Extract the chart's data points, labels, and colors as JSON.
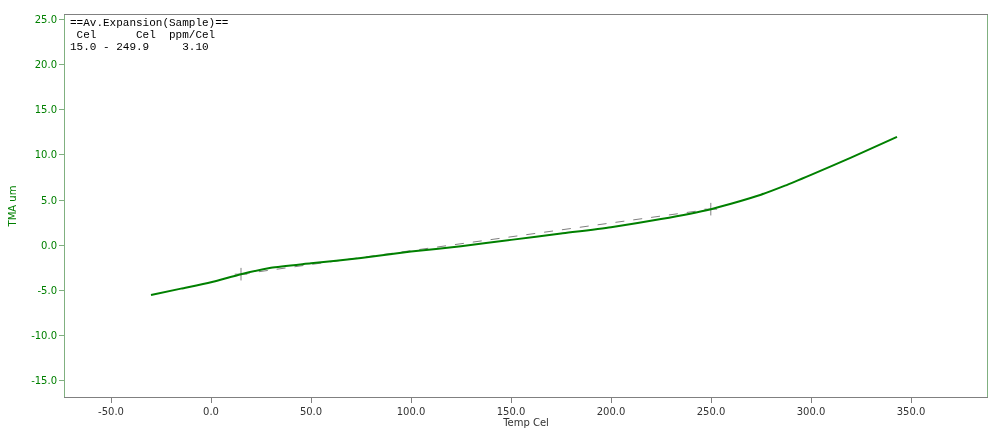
{
  "chart_data": {
    "type": "line",
    "xlabel": "Temp Cel",
    "ylabel": "TMA um",
    "xlim": [
      -73,
      388
    ],
    "ylim": [
      -16.8,
      25.5
    ],
    "xticks": [
      {
        "value": -50,
        "label": "-50.0"
      },
      {
        "value": 0,
        "label": "0.0"
      },
      {
        "value": 50,
        "label": "50.0"
      },
      {
        "value": 100,
        "label": "100.0"
      },
      {
        "value": 150,
        "label": "150.0"
      },
      {
        "value": 200,
        "label": "200.0"
      },
      {
        "value": 250,
        "label": "250.0"
      },
      {
        "value": 300,
        "label": "300.0"
      },
      {
        "value": 350,
        "label": "350.0"
      }
    ],
    "yticks": [
      {
        "value": -15,
        "label": "-15.0"
      },
      {
        "value": -10,
        "label": "-10.0"
      },
      {
        "value": -5,
        "label": "-5.0"
      },
      {
        "value": 0,
        "label": "0.0"
      },
      {
        "value": 5,
        "label": "5.0"
      },
      {
        "value": 10,
        "label": "10.0"
      },
      {
        "value": 15,
        "label": "15.0"
      },
      {
        "value": 20,
        "label": "20.0"
      },
      {
        "value": 25,
        "label": "25.0"
      }
    ],
    "annotations": [
      "==Av.Expansion(Sample)==",
      " Cel      Cel  ppm/Cel",
      "15.0 - 249.9     3.10"
    ],
    "series": [
      {
        "color": "#808080",
        "line_style": "dashed",
        "marker": "cross",
        "x": [
          15,
          249.9
        ],
        "values": [
          -3.2,
          4.0
        ]
      },
      {
        "color": "#008000",
        "line_style": "solid",
        "x": [
          -30,
          -15,
          0,
          15,
          30,
          50,
          75,
          100,
          125,
          150,
          175,
          200,
          225,
          250,
          260,
          275,
          287,
          300,
          320,
          343
        ],
        "values": [
          -5.5,
          -4.8,
          -4.1,
          -3.2,
          -2.5,
          -2.0,
          -1.4,
          -0.7,
          -0.1,
          0.6,
          1.3,
          2.0,
          2.9,
          4.0,
          4.6,
          5.6,
          6.6,
          7.8,
          9.7,
          12.0
        ]
      }
    ]
  }
}
